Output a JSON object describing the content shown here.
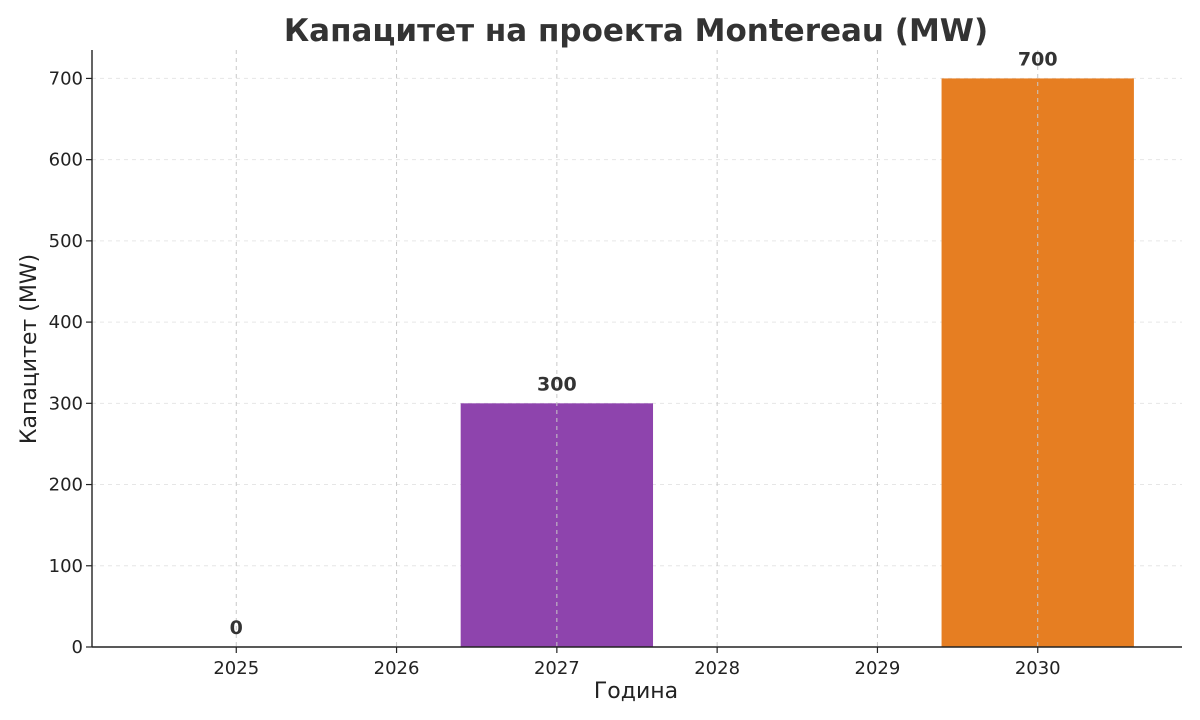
{
  "chart_data": {
    "type": "bar",
    "title": "Капацитет на проекта Montereau (MW)",
    "xlabel": "Година",
    "ylabel": "Капацитет (MW)",
    "categories": [
      "2025",
      "2026",
      "2027",
      "2028",
      "2029",
      "2030"
    ],
    "values": [
      0,
      null,
      300,
      null,
      null,
      700
    ],
    "data_labels": [
      "0",
      "",
      "300",
      "",
      "",
      "700"
    ],
    "bar_colors": [
      "#1f77b4",
      "#1f77b4",
      "#8e44ad",
      "#1f77b4",
      "#1f77b4",
      "#e67e22"
    ],
    "ylim": [
      0,
      735
    ],
    "yticks": [
      0,
      100,
      200,
      300,
      400,
      500,
      600,
      700
    ],
    "grid": true,
    "legend": "none"
  }
}
